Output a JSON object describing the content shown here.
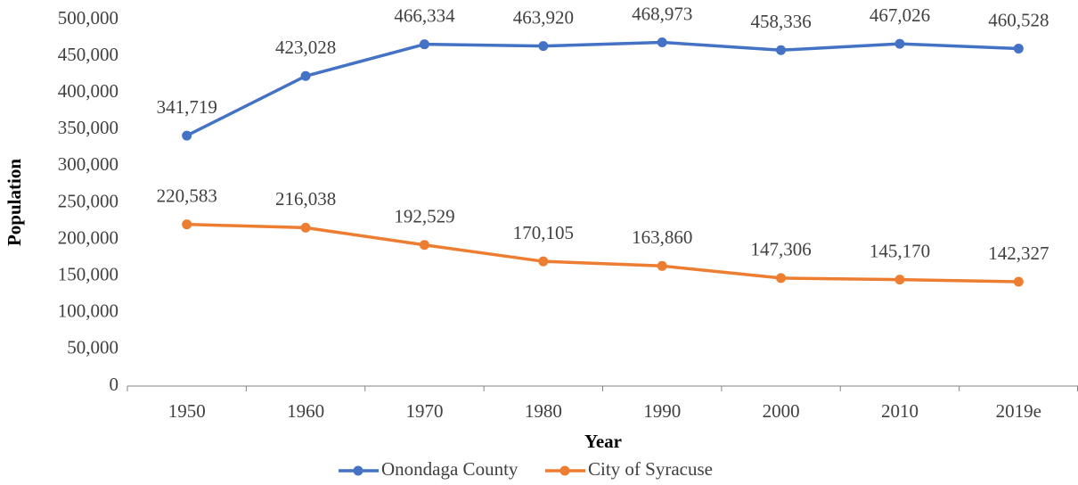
{
  "chart_data": {
    "type": "line",
    "x_label": "Year",
    "y_label": "Population",
    "categories": [
      "1950",
      "1960",
      "1970",
      "1980",
      "1990",
      "2000",
      "2010",
      "2019e"
    ],
    "series": [
      {
        "name": "Onondaga County",
        "color": "#4472c4",
        "values": [
          341719,
          423028,
          466334,
          463920,
          468973,
          458336,
          467026,
          460528
        ],
        "value_labels": [
          "341,719",
          "423,028",
          "466,334",
          "463,920",
          "468,973",
          "458,336",
          "467,026",
          "460,528"
        ]
      },
      {
        "name": "City of Syracuse",
        "color": "#ed7d31",
        "values": [
          220583,
          216038,
          192529,
          170105,
          163860,
          147306,
          145170,
          142327
        ],
        "value_labels": [
          "220,583",
          "216,038",
          "192,529",
          "170,105",
          "163,860",
          "147,306",
          "145,170",
          "142,327"
        ]
      }
    ],
    "ylim": [
      0,
      500000
    ],
    "yticks": [
      0,
      {
        "value": 50000,
        "label": "50,000"
      },
      {
        "value": 100000,
        "label": "100,000"
      },
      {
        "value": 150000,
        "label": "150,000"
      },
      {
        "value": 200000,
        "label": "200,000"
      },
      {
        "value": 250000,
        "label": "250,000"
      },
      {
        "value": 300000,
        "label": "300,000"
      },
      {
        "value": 350000,
        "label": "350,000"
      },
      {
        "value": 400000,
        "label": "400,000"
      },
      {
        "value": 450000,
        "label": "450,000"
      },
      {
        "value": 500000,
        "label": "500,000"
      }
    ],
    "grid": false,
    "legend": "bottom"
  }
}
